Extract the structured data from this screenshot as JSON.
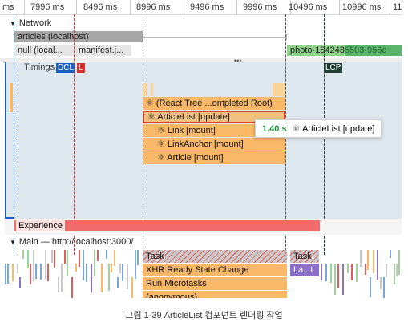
{
  "ruler": {
    "ticks": [
      "ms",
      "7996 ms",
      "8496 ms",
      "8996 ms",
      "9496 ms",
      "9996 ms",
      "10496 ms",
      "10996 ms",
      "11"
    ]
  },
  "network": {
    "title": "Network",
    "rows": [
      {
        "label": "articles (localhost)"
      },
      {
        "label": "null (local..."
      },
      {
        "label": "manifest.j..."
      },
      {
        "label": "photo-1542435503-956c"
      }
    ]
  },
  "timings": {
    "title": "Timings",
    "markers": {
      "dcl": "DCL",
      "l": "L",
      "lcp": "LCP"
    }
  },
  "flame": {
    "react_tree": "⚛ (React Tree ...ompleted Root)",
    "article_list": "⚛ ArticleList [update]",
    "link": "⚛ Link [mount]",
    "link_anchor": "⚛ LinkAnchor [mount]",
    "article": "⚛ Article [mount]"
  },
  "tooltip": {
    "duration": "1.40 s",
    "name": "⚛ ArticleList [update]"
  },
  "experience": {
    "label": "Experience"
  },
  "main": {
    "title": "Main — http://localhost:3000/",
    "task_label": "Task",
    "task2_label": "Task",
    "xhr_label": "XHR Ready State Change",
    "microtasks_label": "Run Microtasks",
    "anonymous_label": "(anonymous)",
    "lat_label": "La...t"
  },
  "caption": "그림 1-39 ArticleList 컴포넌트 렌더링 작업",
  "colors": {
    "network_gray": "#9e9e9e",
    "photo_green": "#8fd18a",
    "photo_dark_green": "#2e9e4e",
    "flame_orange": "#f9b868",
    "flame_hover": "#f0c080",
    "highlight_red": "#e0412f",
    "experience_red": "#f26b6b",
    "task_gray": "#c9c9c9",
    "xhr_orange": "#f9b868",
    "lcp_dark": "#1f3d32",
    "dcl_blue": "#1a5fbf",
    "tooltip_green": "#1e8e3e",
    "purple": "#8b6fc9"
  }
}
